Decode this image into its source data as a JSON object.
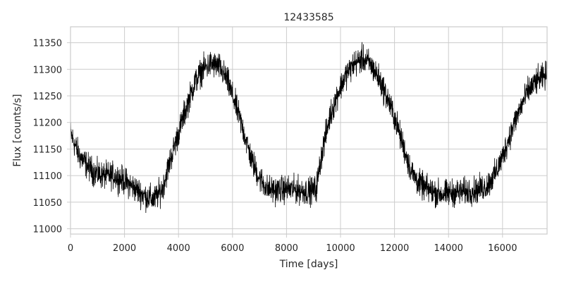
{
  "chart_data": {
    "type": "line",
    "title": "12433585",
    "xlabel": "Time [days]",
    "ylabel": "Flux [counts/s]",
    "xlim": [
      0,
      17650
    ],
    "ylim": [
      10990,
      11380
    ],
    "xticks": [
      0,
      2000,
      4000,
      6000,
      8000,
      10000,
      12000,
      14000,
      16000
    ],
    "yticks": [
      11000,
      11050,
      11100,
      11150,
      11200,
      11250,
      11300,
      11350
    ],
    "grid": true,
    "legend": "none",
    "series": [
      {
        "color": "#000000",
        "noise": 18,
        "x": [
          0,
          300,
          600,
          900,
          1200,
          1600,
          2000,
          2400,
          2800,
          3100,
          3400,
          3700,
          4000,
          4300,
          4600,
          4900,
          5200,
          5500,
          5800,
          6100,
          6400,
          6700,
          7000,
          7300,
          7600,
          8000,
          8400,
          8800,
          9100,
          9300,
          9600,
          9900,
          10200,
          10500,
          10800,
          11100,
          11400,
          11700,
          12000,
          12300,
          12600,
          12900,
          13200,
          13500,
          13800,
          14200,
          14600,
          15000,
          15400,
          15700,
          16000,
          16300,
          16600,
          16900,
          17200,
          17650
        ],
        "y": [
          11180,
          11140,
          11120,
          11105,
          11100,
          11100,
          11090,
          11075,
          11060,
          11055,
          11075,
          11130,
          11180,
          11230,
          11275,
          11300,
          11310,
          11305,
          11280,
          11235,
          11185,
          11130,
          11095,
          11075,
          11072,
          11075,
          11073,
          11070,
          11075,
          11140,
          11210,
          11255,
          11290,
          11310,
          11320,
          11310,
          11285,
          11250,
          11210,
          11160,
          11110,
          11085,
          11075,
          11068,
          11065,
          11068,
          11070,
          11072,
          11080,
          11100,
          11135,
          11180,
          11220,
          11255,
          11275,
          11290
        ]
      }
    ]
  }
}
